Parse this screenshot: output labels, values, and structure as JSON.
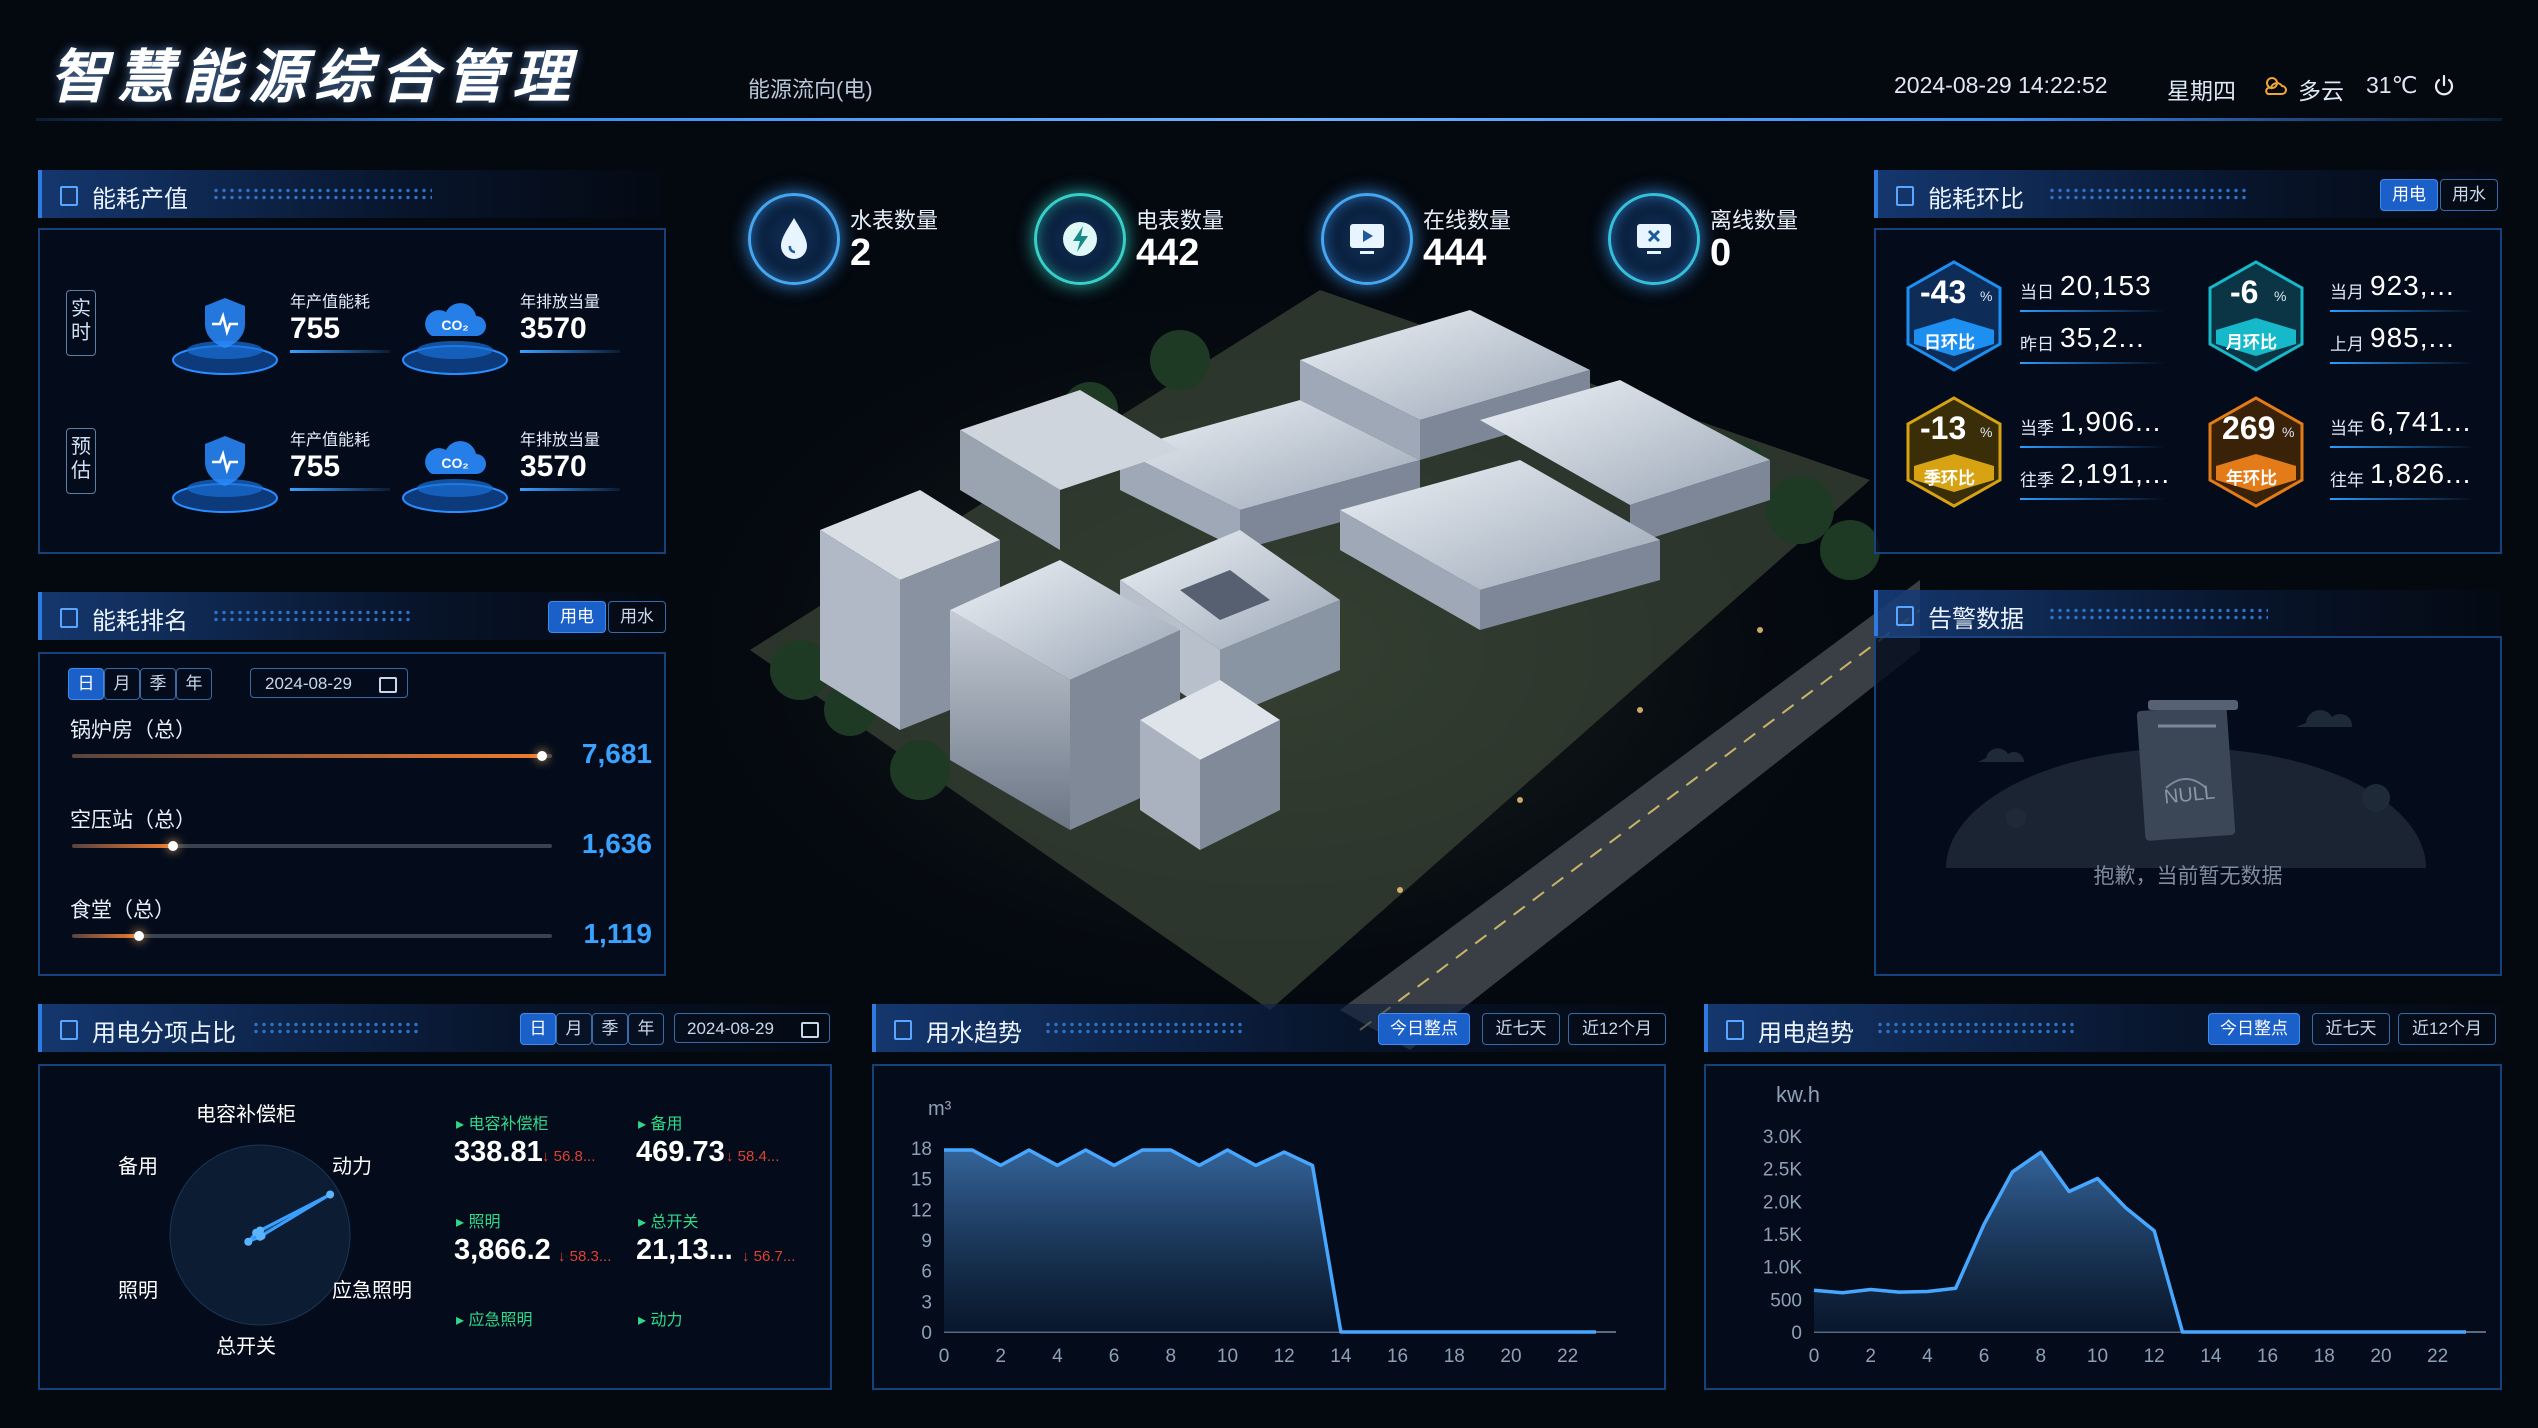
{
  "header": {
    "title": "智慧能源综合管理",
    "flow_label": "能源流向(电)",
    "datetime": "2024-08-29 14:22:52",
    "weekday": "星期四",
    "weather": "多云",
    "temperature": "31℃"
  },
  "kpis": [
    {
      "label": "水表数量",
      "value": "2",
      "icon": "water-drop-icon"
    },
    {
      "label": "电表数量",
      "value": "442",
      "icon": "lightning-icon"
    },
    {
      "label": "在线数量",
      "value": "444",
      "icon": "monitor-play-icon"
    },
    {
      "label": "离线数量",
      "value": "0",
      "icon": "monitor-x-icon"
    }
  ],
  "output": {
    "title": "能耗产值",
    "rows": [
      {
        "tag": "实时",
        "items": [
          {
            "label": "年产值能耗",
            "value": "755",
            "icon": "shield-pulse-icon"
          },
          {
            "label": "年排放当量",
            "value": "3570",
            "icon": "co2-cloud-icon"
          }
        ]
      },
      {
        "tag": "预估",
        "items": [
          {
            "label": "年产值能耗",
            "value": "755",
            "icon": "shield-pulse-icon"
          },
          {
            "label": "年排放当量",
            "value": "3570",
            "icon": "co2-cloud-icon"
          }
        ]
      }
    ]
  },
  "ranking": {
    "title": "能耗排名",
    "toggles": [
      "用电",
      "用水"
    ],
    "periods": [
      "日",
      "月",
      "季",
      "年"
    ],
    "date": "2024-08-29",
    "items": [
      {
        "name": "锅炉房（总）",
        "value": "7,681",
        "pct": 0.98
      },
      {
        "name": "空压站（总）",
        "value": "1,636",
        "pct": 0.21
      },
      {
        "name": "食堂（总）",
        "value": "1,119",
        "pct": 0.14
      }
    ]
  },
  "ratio": {
    "title": "能耗环比",
    "toggles": [
      "用电",
      "用水"
    ],
    "cards": [
      {
        "value": "-43",
        "unit": "%",
        "tag": "日环比",
        "color": "#1d8ff0",
        "cur_label": "当日",
        "cur": "20,153",
        "prev_label": "昨日",
        "prev": "35,2..."
      },
      {
        "value": "-6",
        "unit": "%",
        "tag": "月环比",
        "color": "#16b9c9",
        "cur_label": "当月",
        "cur": "923,...",
        "prev_label": "上月",
        "prev": "985,..."
      },
      {
        "value": "-13",
        "unit": "%",
        "tag": "季环比",
        "color": "#d8a312",
        "cur_label": "当季",
        "cur": "1,906...",
        "prev_label": "往季",
        "prev": "2,191,..."
      },
      {
        "value": "269",
        "unit": "%",
        "tag": "年环比",
        "color": "#e27b18",
        "cur_label": "当年",
        "cur": "6,741...",
        "prev_label": "往年",
        "prev": "1,826..."
      }
    ]
  },
  "alarm": {
    "title": "告警数据",
    "empty_badge": "NULL",
    "empty_text": "抱歉，当前暂无数据"
  },
  "proportion": {
    "title": "用电分项占比",
    "periods": [
      "日",
      "月",
      "季",
      "年"
    ],
    "date": "2024-08-29",
    "radar_labels": [
      "电容补偿柜",
      "动力",
      "应急照明",
      "总开关",
      "照明",
      "备用"
    ],
    "radar_values": [
      0.05,
      0.9,
      0.02,
      0.02,
      0.15,
      0.05
    ],
    "items": [
      {
        "label": "电容补偿柜",
        "value": "338.81",
        "delta": "56.8..."
      },
      {
        "label": "备用",
        "value": "469.73",
        "delta": "58.4..."
      },
      {
        "label": "照明",
        "value": "3,866.2",
        "delta": "58.3..."
      },
      {
        "label": "总开关",
        "value": "21,13...",
        "delta": "56.7..."
      },
      {
        "label": "应急照明",
        "value": "",
        "delta": ""
      },
      {
        "label": "动力",
        "value": "",
        "delta": ""
      }
    ]
  },
  "water_trend": {
    "title": "用水趋势",
    "tabs": [
      "今日整点",
      "近七天",
      "近12个月"
    ],
    "chart_data": {
      "type": "area",
      "ylabel": "m³",
      "ylim": [
        0,
        18
      ],
      "yticks": [
        0,
        3,
        6,
        9,
        12,
        15,
        18
      ],
      "xticks": [
        0,
        2,
        4,
        6,
        8,
        10,
        12,
        14,
        16,
        18,
        20,
        22
      ],
      "x": [
        0,
        1,
        2,
        3,
        4,
        5,
        6,
        7,
        8,
        9,
        10,
        11,
        12,
        13,
        14,
        15,
        16,
        17,
        18,
        19,
        20,
        21,
        22,
        23
      ],
      "values": [
        17.8,
        17.8,
        16.3,
        17.8,
        16.3,
        17.8,
        16.3,
        17.8,
        17.8,
        16.3,
        17.8,
        16.3,
        17.6,
        16.3,
        0,
        0,
        0,
        0,
        0,
        0,
        0,
        0,
        0,
        0
      ]
    }
  },
  "power_trend": {
    "title": "用电趋势",
    "tabs": [
      "今日整点",
      "近七天",
      "近12个月"
    ],
    "chart_data": {
      "type": "area",
      "ylabel": "kw.h",
      "ylim": [
        0,
        3000
      ],
      "yticks": [
        "0",
        "500",
        "1.0K",
        "1.5K",
        "2.0K",
        "2.5K",
        "3.0K"
      ],
      "xticks": [
        0,
        2,
        4,
        6,
        8,
        10,
        12,
        14,
        16,
        18,
        20,
        22
      ],
      "x": [
        0,
        1,
        2,
        3,
        4,
        5,
        6,
        7,
        8,
        9,
        10,
        11,
        12,
        13,
        14,
        15,
        16,
        17,
        18,
        19,
        20,
        21,
        22,
        23
      ],
      "values": [
        640,
        600,
        650,
        610,
        620,
        670,
        1650,
        2450,
        2750,
        2150,
        2350,
        1900,
        1550,
        0,
        0,
        0,
        0,
        0,
        0,
        0,
        0,
        0,
        0,
        0
      ]
    }
  }
}
